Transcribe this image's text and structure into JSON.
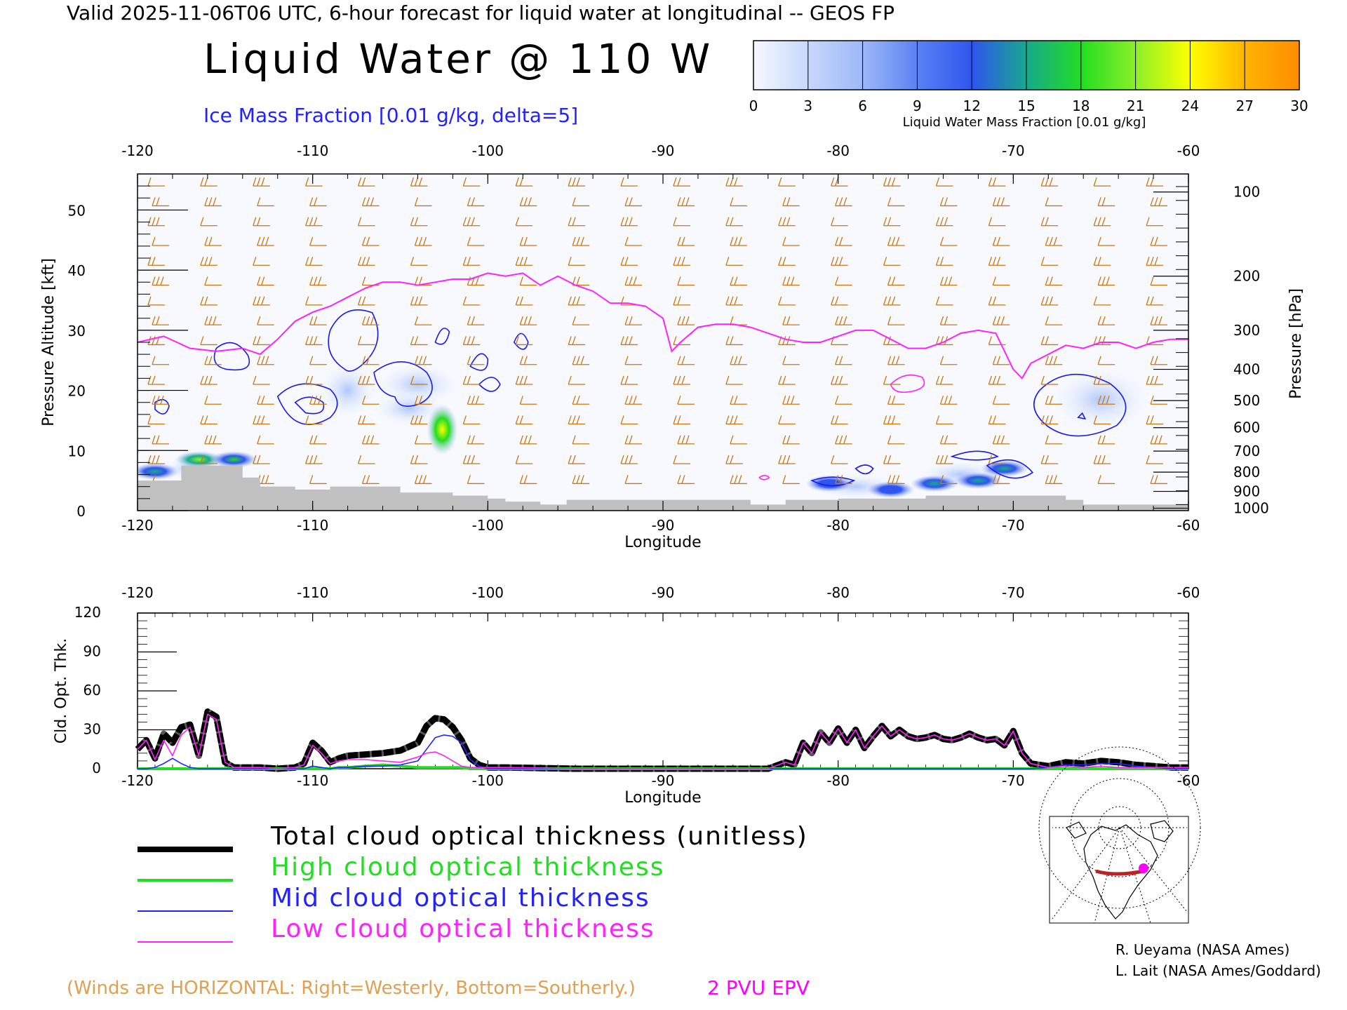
{
  "header": {
    "top_title": "Valid 2025-11-06T06 UTC, 6-hour forecast for liquid water at longitudinal -- GEOS FP",
    "main_title": "Liquid Water @ 110 W",
    "subtitle": "Ice Mass Fraction [0.01 g/kg, delta=5]"
  },
  "colorbar": {
    "label": "Liquid Water Mass Fraction [0.01 g/kg]",
    "ticks": [
      "0",
      "3",
      "6",
      "9",
      "12",
      "15",
      "18",
      "21",
      "24",
      "27",
      "30"
    ],
    "colors": [
      "#f5f8ff",
      "#c7d8fb",
      "#9cb8f8",
      "#5a82f3",
      "#2f55ee",
      "#18a88c",
      "#22dd22",
      "#8af028",
      "#ffff00",
      "#ffb400",
      "#ff8c00",
      "#ff3300"
    ]
  },
  "chart_data": [
    {
      "type": "heatmap",
      "name_desc": "cross-section",
      "xlabel": "Longitude",
      "ylabel": "Pressure Altitude [kft]",
      "ylabel_right": "Pressure [hPa]",
      "xlim": [
        -120,
        -60
      ],
      "ylim": [
        0,
        56
      ],
      "x_ticks": [
        "-120",
        "-110",
        "-100",
        "-90",
        "-80",
        "-70",
        "-60"
      ],
      "y_ticks": [
        "0",
        "10",
        "20",
        "30",
        "40",
        "50"
      ],
      "pressure_ticks": [
        "100",
        "200",
        "300",
        "400",
        "500",
        "600",
        "700",
        "800",
        "900",
        "1000"
      ],
      "pressure_tick_kft": [
        53,
        39,
        30,
        23.5,
        18.3,
        13.8,
        9.9,
        6.4,
        3.2,
        0.4
      ],
      "tropopause_2pvu_kft": {
        "lon": [
          -120,
          -118.5,
          -117,
          -115.5,
          -114,
          -113,
          -112,
          -111,
          -110,
          -109,
          -108,
          -107,
          -106,
          -105,
          -104,
          -103,
          -102,
          -101,
          -100,
          -99,
          -98,
          -97,
          -96,
          -95,
          -94,
          -93,
          -92,
          -91,
          -90,
          -89.5,
          -89,
          -88,
          -87,
          -86,
          -85,
          -84,
          -83,
          -82,
          -81,
          -80,
          -79,
          -78,
          -77,
          -76,
          -75,
          -74,
          -73,
          -72,
          -71,
          -70,
          -69.5,
          -69,
          -68,
          -67,
          -66,
          -65,
          -64,
          -63,
          -62,
          -61,
          -60
        ],
        "alt": [
          28,
          29,
          27,
          26.5,
          27,
          26,
          28.5,
          31.5,
          33,
          34,
          35.5,
          37,
          38,
          38,
          37.5,
          38,
          38.5,
          38.5,
          39.5,
          39,
          39.5,
          37.5,
          39,
          37.5,
          36.5,
          34.5,
          34.5,
          34,
          32,
          26.5,
          28,
          30.5,
          31,
          31,
          30.5,
          29.5,
          28.5,
          28,
          28,
          29,
          30,
          30,
          28.5,
          27,
          27,
          28,
          29.5,
          30,
          29.5,
          23.5,
          22,
          24.5,
          26,
          27.5,
          27,
          28,
          28,
          27,
          28,
          28.5,
          28.5
        ]
      },
      "liquid_blobs": [
        {
          "lon": -119,
          "kft": 6.5,
          "value": 12
        },
        {
          "lon": -116.5,
          "kft": 8.5,
          "value": 19
        },
        {
          "lon": -114.5,
          "kft": 8.5,
          "value": 17
        },
        {
          "lon": -102.6,
          "kft": 13.5,
          "value": 22
        },
        {
          "lon": -80.5,
          "kft": 4.5,
          "value": 9
        },
        {
          "lon": -77,
          "kft": 3.5,
          "value": 11
        },
        {
          "lon": -74.5,
          "kft": 4.5,
          "value": 14
        },
        {
          "lon": -72,
          "kft": 5,
          "value": 13
        },
        {
          "lon": -70.5,
          "kft": 7,
          "value": 14
        }
      ],
      "terrain_kft": {
        "lon": [
          -120,
          -117.5,
          -117.5,
          -114,
          -114,
          -113,
          -113,
          -111,
          -111,
          -109,
          -109,
          -105,
          -105,
          -102,
          -102,
          -100,
          -100,
          -99,
          -99,
          -97,
          -97,
          -95.5,
          -95.5,
          -85,
          -85,
          -83,
          -83,
          -80,
          -80,
          -75,
          -75,
          -70,
          -70,
          -67,
          -67,
          -66,
          -66,
          -60
        ],
        "alt": [
          5,
          5,
          7.5,
          7.5,
          5.5,
          5.5,
          4,
          4,
          3.5,
          3.5,
          4,
          4,
          3,
          3,
          2.5,
          2.5,
          2,
          2,
          1.5,
          1.5,
          1,
          1,
          1.8,
          1.8,
          1,
          1,
          1.8,
          1.8,
          2,
          2,
          2.5,
          2.5,
          2.5,
          2.5,
          1.8,
          1.8,
          1,
          1
        ]
      }
    },
    {
      "type": "line",
      "ylabel": "Cld. Opt. Thk.",
      "xlabel": "Longitude",
      "xlim": [
        -120,
        -60
      ],
      "ylim": [
        0,
        120
      ],
      "x_ticks": [
        "-120",
        "-110",
        "-100",
        "-90",
        "-80",
        "-70",
        "-60"
      ],
      "y_ticks": [
        "0",
        "30",
        "60",
        "90",
        "120"
      ],
      "x": [
        -120,
        -119.5,
        -119,
        -118.5,
        -118,
        -117.5,
        -117,
        -116.5,
        -116,
        -115.5,
        -115,
        -114.5,
        -114,
        -113,
        -112,
        -111,
        -110.5,
        -110,
        -109.5,
        -109,
        -108.5,
        -108,
        -107,
        -106,
        -105,
        -104,
        -103.5,
        -103,
        -102.5,
        -102,
        -101.5,
        -101,
        -100.5,
        -100,
        -99,
        -95,
        -90,
        -85,
        -84,
        -83,
        -82.5,
        -82,
        -81.5,
        -81,
        -80.5,
        -80,
        -79.5,
        -79,
        -78.5,
        -78,
        -77.5,
        -77,
        -76.5,
        -76,
        -75.5,
        -75,
        -74.5,
        -74,
        -73.5,
        -73,
        -72.5,
        -72,
        -71.5,
        -71,
        -70.5,
        -70,
        -69.5,
        -69,
        -68,
        -67,
        -66,
        -65,
        -64,
        -63,
        -62,
        -61,
        -60
      ],
      "series": [
        {
          "name": "Total cloud optical thickness (unitless)",
          "color": "#000000",
          "values": [
            15,
            22,
            8,
            27,
            20,
            32,
            34,
            10,
            44,
            40,
            5,
            1,
            1,
            1,
            0,
            1,
            4,
            20,
            14,
            5,
            8,
            10,
            11,
            12,
            14,
            20,
            33,
            39,
            38,
            32,
            22,
            8,
            3,
            1,
            1,
            0,
            0,
            0,
            0,
            5,
            3,
            20,
            12,
            28,
            20,
            31,
            20,
            30,
            16,
            25,
            33,
            25,
            30,
            25,
            23,
            24,
            26,
            23,
            22,
            24,
            27,
            24,
            22,
            23,
            18,
            29,
            12,
            4,
            2,
            5,
            4,
            6,
            5,
            3,
            2,
            1,
            1
          ]
        },
        {
          "name": "High cloud optical thickness",
          "color": "#22dd22",
          "values": [
            0,
            0,
            0,
            0,
            0,
            0,
            0,
            0,
            0,
            0,
            0,
            0,
            0,
            0,
            0,
            0,
            0,
            0,
            0,
            0,
            1,
            1,
            2,
            3,
            2,
            1,
            1,
            1,
            1,
            1,
            1,
            0,
            0,
            0,
            0,
            0,
            0,
            0,
            0,
            0,
            0,
            0,
            0,
            0,
            0,
            0,
            0,
            0,
            0,
            0,
            0,
            0,
            0,
            0,
            0,
            0,
            0,
            0,
            0,
            0,
            0,
            0,
            0,
            0,
            0,
            0,
            0,
            0,
            0,
            0,
            0,
            0,
            0,
            0,
            0,
            0,
            0
          ]
        },
        {
          "name": "Mid cloud optical thickness",
          "color": "#2222ff",
          "values": [
            0,
            0,
            1,
            4,
            8,
            4,
            1,
            0,
            0,
            0,
            0,
            0,
            0,
            0,
            0,
            0,
            0,
            2,
            1,
            0,
            1,
            1,
            2,
            2,
            3,
            6,
            15,
            24,
            26,
            25,
            20,
            7,
            2,
            0,
            0,
            0,
            0,
            0,
            0,
            0,
            0,
            0,
            0,
            0,
            0,
            0,
            0,
            0,
            0,
            0,
            0,
            0,
            0,
            0,
            0,
            0,
            0,
            0,
            0,
            0,
            0,
            0,
            0,
            0,
            0,
            0,
            0,
            0,
            1,
            3,
            3,
            4,
            4,
            2,
            1,
            0,
            0
          ]
        },
        {
          "name": "Low cloud optical thickness",
          "color": "#ff22ff",
          "values": [
            15,
            22,
            7,
            22,
            10,
            26,
            32,
            10,
            42,
            38,
            5,
            1,
            1,
            1,
            0,
            1,
            3,
            18,
            12,
            4,
            6,
            7,
            7,
            6,
            5,
            9,
            12,
            13,
            10,
            6,
            2,
            1,
            1,
            1,
            1,
            0,
            0,
            0,
            0,
            5,
            3,
            20,
            12,
            28,
            20,
            31,
            20,
            30,
            16,
            25,
            33,
            25,
            30,
            25,
            23,
            24,
            26,
            23,
            22,
            24,
            27,
            24,
            22,
            23,
            18,
            29,
            12,
            4,
            1,
            2,
            1,
            2,
            1,
            1,
            1,
            1,
            1
          ]
        }
      ]
    }
  ],
  "legend": {
    "total": "Total cloud optical thickness (unitless)",
    "high": "High cloud optical thickness",
    "mid": "Mid cloud optical thickness",
    "low": "Low cloud optical thickness"
  },
  "notes": {
    "winds": "(Winds are HORIZONTAL: Right=Westerly, Bottom=Southerly.)",
    "pv": "2 PVU EPV"
  },
  "credits": {
    "line1": "R. Ueyama (NASA Ames)",
    "line2": "L. Lait (NASA Ames/Goddard)"
  },
  "colors": {
    "wind": "#c87810",
    "tropopause": "#ff22ff",
    "ice_contour": "#1a1ae6",
    "terrain": "#c0c0c0",
    "route": "#bb2222",
    "marker": "#ff00ff"
  }
}
